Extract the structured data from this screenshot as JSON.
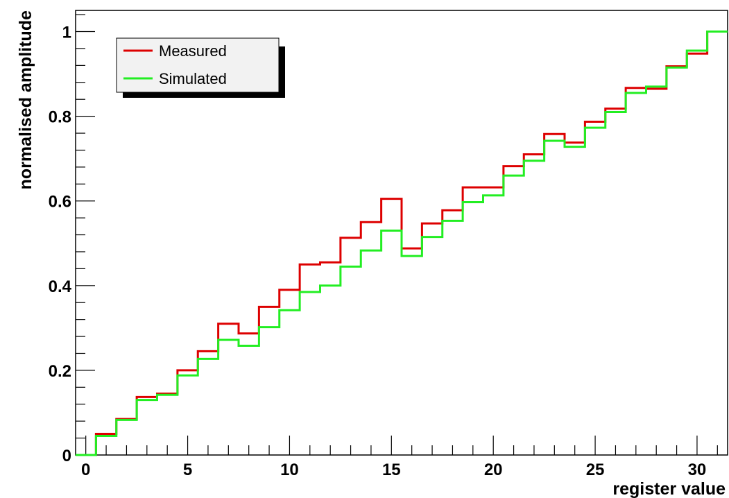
{
  "chart_data": {
    "type": "line",
    "step": true,
    "title": "",
    "xlabel": "register value",
    "ylabel": "normalised amplitude",
    "xlim": [
      -0.5,
      31.5
    ],
    "ylim": [
      0,
      1.05
    ],
    "grid": false,
    "legend_position": "top-left",
    "x_ticks": [
      0,
      5,
      10,
      15,
      20,
      25,
      30
    ],
    "x_tick_labels": [
      "0",
      "5",
      "10",
      "15",
      "20",
      "25",
      "30"
    ],
    "y_ticks": [
      0,
      0.2,
      0.4,
      0.6,
      0.8,
      1
    ],
    "y_tick_labels": [
      "0",
      "0.2",
      "0.4",
      "0.6",
      "0.8",
      "1"
    ],
    "x": [
      0,
      1,
      2,
      3,
      4,
      5,
      6,
      7,
      8,
      9,
      10,
      11,
      12,
      13,
      14,
      15,
      16,
      17,
      18,
      19,
      20,
      21,
      22,
      23,
      24,
      25,
      26,
      27,
      28,
      29,
      30,
      31
    ],
    "series": [
      {
        "name": "Measured",
        "color": "#dd0000",
        "values": [
          0.0,
          0.05,
          0.085,
          0.137,
          0.145,
          0.2,
          0.245,
          0.31,
          0.287,
          0.35,
          0.39,
          0.45,
          0.455,
          0.513,
          0.55,
          0.605,
          0.488,
          0.547,
          0.578,
          0.632,
          0.632,
          0.682,
          0.71,
          0.758,
          0.738,
          0.787,
          0.818,
          0.867,
          0.865,
          0.918,
          0.948,
          1.0
        ]
      },
      {
        "name": "Simulated",
        "color": "#22ee22",
        "values": [
          0.0,
          0.045,
          0.083,
          0.13,
          0.142,
          0.188,
          0.227,
          0.272,
          0.258,
          0.302,
          0.342,
          0.385,
          0.4,
          0.445,
          0.483,
          0.53,
          0.47,
          0.515,
          0.553,
          0.597,
          0.613,
          0.66,
          0.695,
          0.742,
          0.728,
          0.773,
          0.81,
          0.855,
          0.87,
          0.915,
          0.955,
          1.0
        ]
      }
    ]
  }
}
